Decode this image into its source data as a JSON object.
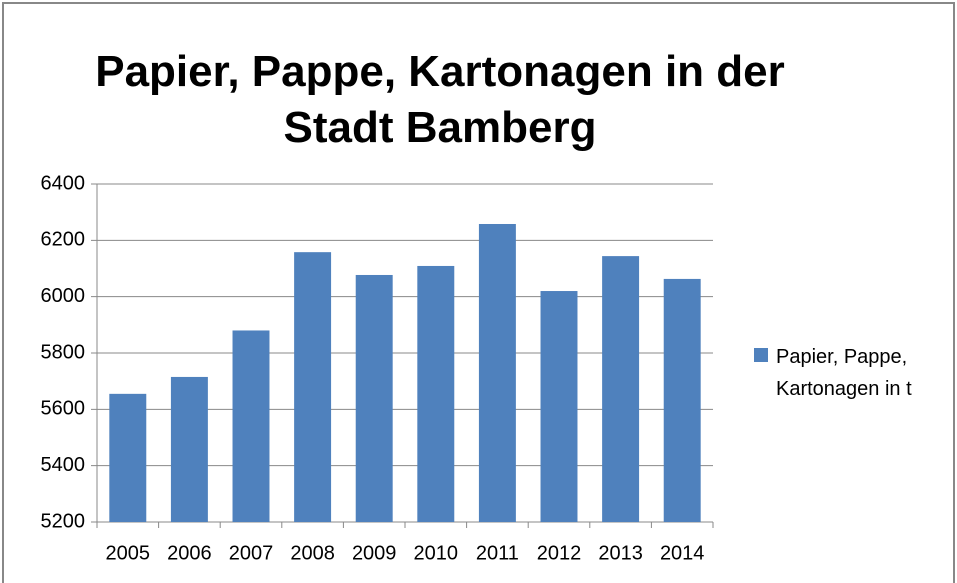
{
  "chart_data": {
    "type": "bar",
    "title": "Papier, Pappe, Kartonagen in der Stadt Bamberg",
    "categories": [
      "2005",
      "2006",
      "2007",
      "2008",
      "2009",
      "2010",
      "2011",
      "2012",
      "2013",
      "2014"
    ],
    "series": [
      {
        "name": "Papier, Pappe, Kartonagen in t",
        "color": "#4f81bd",
        "values": [
          5655,
          5715,
          5880,
          6158,
          6077,
          6109,
          6258,
          6020,
          6144,
          6063
        ]
      }
    ],
    "ylim": [
      5200,
      6400
    ],
    "yticks": [
      5200,
      5400,
      5600,
      5800,
      6000,
      6200,
      6400
    ],
    "grid": true,
    "legend": "right"
  }
}
